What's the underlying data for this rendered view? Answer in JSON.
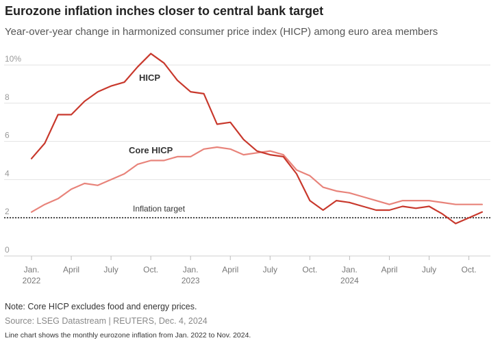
{
  "title": "Eurozone inflation inches closer to central bank target",
  "subtitle": "Year-over-year change in harmonized consumer price index (HICP) among euro area members",
  "note": "Note: Core HICP excludes food and energy prices.",
  "source": "Source: LSEG Datastream | REUTERS, Dec. 4, 2024",
  "alt_text": "Line chart shows the monthly eurozone inflation from Jan. 2022 to Nov. 2024.",
  "chart_data": {
    "type": "line",
    "x": [
      "2022-01",
      "2022-02",
      "2022-03",
      "2022-04",
      "2022-05",
      "2022-06",
      "2022-07",
      "2022-08",
      "2022-09",
      "2022-10",
      "2022-11",
      "2022-12",
      "2023-01",
      "2023-02",
      "2023-03",
      "2023-04",
      "2023-05",
      "2023-06",
      "2023-07",
      "2023-08",
      "2023-09",
      "2023-10",
      "2023-11",
      "2023-12",
      "2024-01",
      "2024-02",
      "2024-03",
      "2024-04",
      "2024-05",
      "2024-06",
      "2024-07",
      "2024-08",
      "2024-09",
      "2024-10",
      "2024-11"
    ],
    "series": [
      {
        "name": "HICP",
        "color": "#c8382c",
        "values": [
          5.1,
          5.9,
          7.4,
          7.4,
          8.1,
          8.6,
          8.9,
          9.1,
          9.9,
          10.6,
          10.1,
          9.2,
          8.6,
          8.5,
          6.9,
          7.0,
          6.1,
          5.5,
          5.3,
          5.2,
          4.3,
          2.9,
          2.4,
          2.9,
          2.8,
          2.6,
          2.4,
          2.4,
          2.6,
          2.5,
          2.6,
          2.2,
          1.7,
          2.0,
          2.3
        ]
      },
      {
        "name": "Core HICP",
        "color": "#e8837a",
        "values": [
          2.3,
          2.7,
          3.0,
          3.5,
          3.8,
          3.7,
          4.0,
          4.3,
          4.8,
          5.0,
          5.0,
          5.2,
          5.2,
          5.6,
          5.7,
          5.6,
          5.3,
          5.4,
          5.5,
          5.3,
          4.5,
          4.2,
          3.6,
          3.4,
          3.3,
          3.1,
          2.9,
          2.7,
          2.9,
          2.9,
          2.9,
          2.8,
          2.7,
          2.7,
          2.7
        ]
      }
    ],
    "reference_line": {
      "label": "Inflation target",
      "value": 2.0,
      "style": "dotted"
    },
    "yticks": [
      {
        "value": 0,
        "label": "0"
      },
      {
        "value": 2,
        "label": "2"
      },
      {
        "value": 4,
        "label": "4"
      },
      {
        "value": 6,
        "label": "6"
      },
      {
        "value": 8,
        "label": "8"
      },
      {
        "value": 10,
        "label": "10%"
      }
    ],
    "xticks": [
      {
        "index": 0,
        "line1": "Jan.",
        "line2": "2022"
      },
      {
        "index": 3,
        "line1": "April",
        "line2": ""
      },
      {
        "index": 6,
        "line1": "July",
        "line2": ""
      },
      {
        "index": 9,
        "line1": "Oct.",
        "line2": ""
      },
      {
        "index": 12,
        "line1": "Jan.",
        "line2": "2023"
      },
      {
        "index": 15,
        "line1": "April",
        "line2": ""
      },
      {
        "index": 18,
        "line1": "July",
        "line2": ""
      },
      {
        "index": 21,
        "line1": "Oct.",
        "line2": ""
      },
      {
        "index": 24,
        "line1": "Jan.",
        "line2": "2024"
      },
      {
        "index": 27,
        "line1": "April",
        "line2": ""
      },
      {
        "index": 30,
        "line1": "July",
        "line2": ""
      },
      {
        "index": 33,
        "line1": "Oct.",
        "line2": ""
      }
    ],
    "ylim": [
      0,
      10.6
    ],
    "grid": true,
    "legend": "inline labels"
  }
}
